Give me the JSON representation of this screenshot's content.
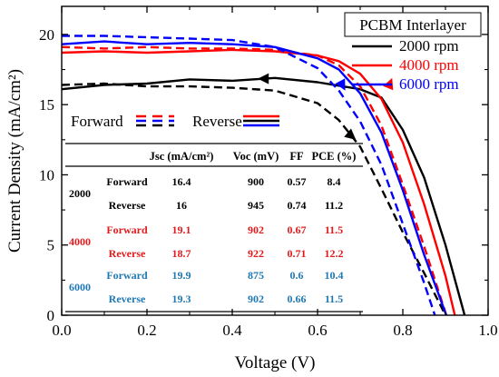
{
  "chart_data": {
    "type": "line",
    "xlabel": "Voltage (V)",
    "ylabel": "Current Density (mA/cm²)",
    "xlim": [
      0,
      1.0
    ],
    "ylim": [
      0,
      22
    ],
    "xticks": [
      "0.0",
      "0.2",
      "0.4",
      "0.6",
      "0.8",
      "1.0"
    ],
    "yticks": [
      "0",
      "5",
      "10",
      "15",
      "20"
    ],
    "grid": false,
    "legend": {
      "title": "PCBM Interlayer",
      "placement": "top-right",
      "entries": [
        "2000 rpm",
        "4000 rpm",
        "6000 rpm"
      ]
    },
    "scan_legend": {
      "forward": "Forward",
      "reverse": "Reverse",
      "placement": "center-left"
    },
    "series": [
      {
        "name": "2000 rpm",
        "scan": "Reverse",
        "color": "#000000",
        "style": "solid",
        "x": [
          0,
          0.1,
          0.2,
          0.3,
          0.4,
          0.5,
          0.6,
          0.7,
          0.75,
          0.8,
          0.85,
          0.9,
          0.945
        ],
        "y": [
          16.1,
          16.4,
          16.5,
          16.8,
          16.7,
          16.9,
          16.6,
          16.1,
          15.5,
          13.2,
          9.8,
          5.0,
          0
        ]
      },
      {
        "name": "2000 rpm",
        "scan": "Forward",
        "color": "#000000",
        "style": "dashed",
        "x": [
          0,
          0.1,
          0.2,
          0.3,
          0.4,
          0.5,
          0.6,
          0.65,
          0.7,
          0.75,
          0.8,
          0.85,
          0.9
        ],
        "y": [
          16.4,
          16.5,
          16.3,
          16.3,
          16.2,
          16.0,
          15.1,
          13.9,
          12.0,
          9.0,
          5.9,
          3.0,
          0
        ]
      },
      {
        "name": "4000 rpm",
        "scan": "Reverse",
        "color": "#ff0000",
        "style": "solid",
        "x": [
          0,
          0.1,
          0.2,
          0.3,
          0.4,
          0.5,
          0.6,
          0.65,
          0.7,
          0.75,
          0.8,
          0.85,
          0.9,
          0.922
        ],
        "y": [
          18.7,
          18.8,
          18.7,
          18.8,
          18.9,
          18.8,
          18.5,
          18.1,
          17.2,
          15.4,
          12.3,
          7.9,
          2.8,
          0
        ]
      },
      {
        "name": "4000 rpm",
        "scan": "Forward",
        "color": "#ff0000",
        "style": "dashed",
        "x": [
          0,
          0.1,
          0.2,
          0.3,
          0.4,
          0.5,
          0.6,
          0.65,
          0.7,
          0.75,
          0.8,
          0.85,
          0.902
        ],
        "y": [
          19.1,
          19.0,
          19.1,
          19.0,
          19.0,
          18.9,
          18.5,
          17.8,
          16.3,
          13.5,
          9.3,
          4.9,
          0
        ]
      },
      {
        "name": "6000 rpm",
        "scan": "Reverse",
        "color": "#0000ff",
        "style": "solid",
        "x": [
          0,
          0.1,
          0.2,
          0.3,
          0.4,
          0.5,
          0.6,
          0.65,
          0.7,
          0.75,
          0.8,
          0.85,
          0.902
        ],
        "y": [
          19.3,
          19.5,
          19.3,
          19.4,
          19.3,
          19.1,
          18.3,
          17.5,
          15.8,
          13.0,
          8.9,
          4.3,
          0
        ]
      },
      {
        "name": "6000 rpm",
        "scan": "Forward",
        "color": "#0000ff",
        "style": "dashed",
        "x": [
          0,
          0.1,
          0.2,
          0.3,
          0.4,
          0.5,
          0.6,
          0.65,
          0.7,
          0.75,
          0.8,
          0.85,
          0.875
        ],
        "y": [
          19.9,
          19.9,
          19.8,
          19.7,
          19.6,
          19.1,
          17.6,
          16.0,
          13.8,
          10.7,
          6.5,
          2.3,
          0
        ]
      }
    ],
    "table": {
      "headers": [
        "",
        "",
        "Jsc (mA/cm²)",
        "Voc (mV)",
        "FF",
        "PCE (%)"
      ],
      "groups": [
        {
          "label": "2000",
          "color": "#000000",
          "rows": [
            {
              "scan": "Forward",
              "jsc": "16.4",
              "voc": "900",
              "ff": "0.57",
              "pce": "8.4"
            },
            {
              "scan": "Reverse",
              "jsc": "16",
              "voc": "945",
              "ff": "0.74",
              "pce": "11.2"
            }
          ]
        },
        {
          "label": "4000",
          "color": "#e31a1c",
          "rows": [
            {
              "scan": "Forward",
              "jsc": "19.1",
              "voc": "902",
              "ff": "0.67",
              "pce": "11.5"
            },
            {
              "scan": "Reverse",
              "jsc": "18.7",
              "voc": "922",
              "ff": "0.71",
              "pce": "12.2"
            }
          ]
        },
        {
          "label": "6000",
          "color": "#1f78b4",
          "rows": [
            {
              "scan": "Forward",
              "jsc": "19.9",
              "voc": "875",
              "ff": "0.6",
              "pce": "10.4"
            },
            {
              "scan": "Reverse",
              "jsc": "19.3",
              "voc": "902",
              "ff": "0.66",
              "pce": "11.5"
            }
          ]
        }
      ]
    }
  }
}
